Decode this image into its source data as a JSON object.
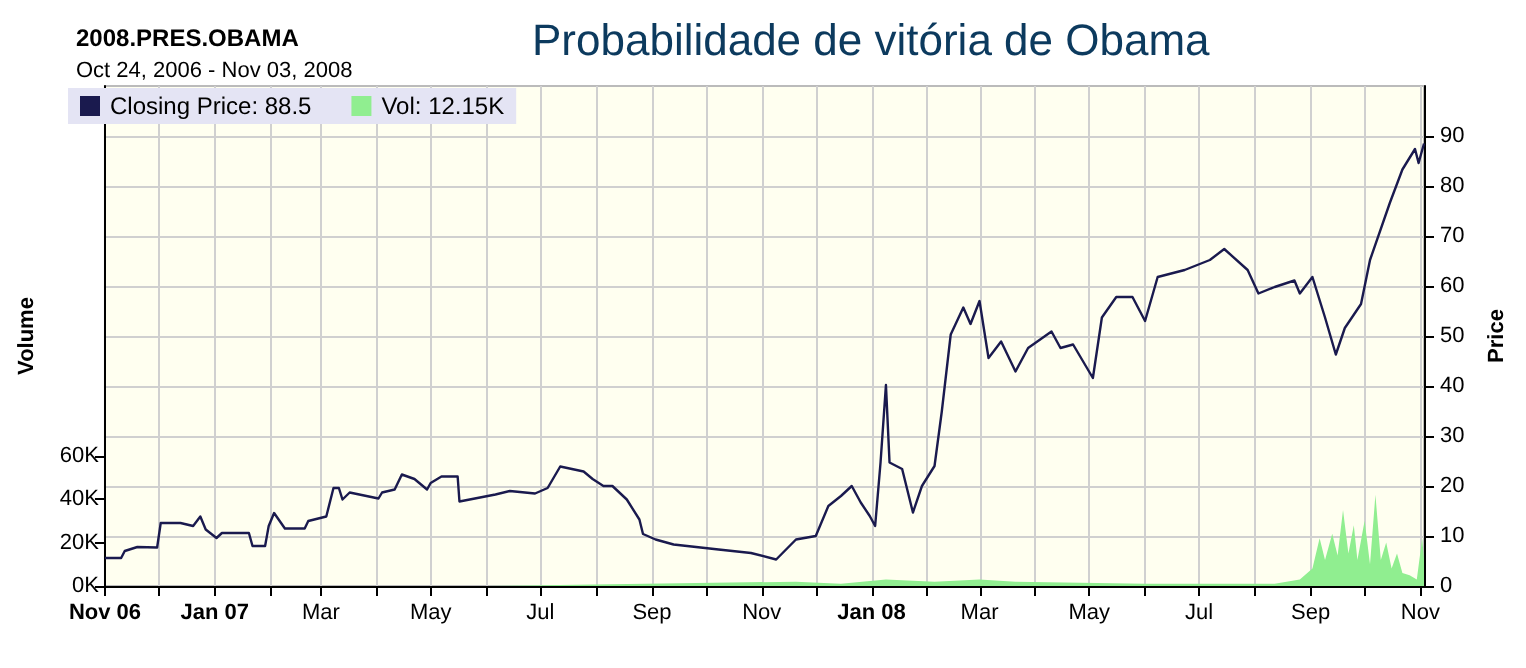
{
  "chart_data": {
    "type": "line",
    "title": "Probabilidade de vitória de Obama",
    "subtitle": "2008.PRES.OBAMA",
    "annotations": [
      "Oct 24, 2006 - Nov 03, 2008"
    ],
    "ylabel": "Volume",
    "y2label": "Price",
    "xlim": [
      "2006-11-01",
      "2008-11-03"
    ],
    "xticks": [
      {
        "value": "2006-11-01",
        "label": "Nov 06"
      },
      {
        "value": "2006-12-01",
        "label": null
      },
      {
        "value": "2007-01-01",
        "label": "Jan 07"
      },
      {
        "value": "2007-02-01",
        "label": null
      },
      {
        "value": "2007-03-01",
        "label": "Mar"
      },
      {
        "value": "2007-04-01",
        "label": null
      },
      {
        "value": "2007-05-01",
        "label": "May"
      },
      {
        "value": "2007-06-01",
        "label": null
      },
      {
        "value": "2007-07-01",
        "label": "Jul"
      },
      {
        "value": "2007-08-01",
        "label": null
      },
      {
        "value": "2007-09-01",
        "label": "Sep"
      },
      {
        "value": "2007-10-01",
        "label": null
      },
      {
        "value": "2007-11-01",
        "label": "Nov"
      },
      {
        "value": "2007-12-01",
        "label": null
      },
      {
        "value": "2008-01-01",
        "label": "Jan 08"
      },
      {
        "value": "2008-02-01",
        "label": null
      },
      {
        "value": "2008-03-01",
        "label": "Mar"
      },
      {
        "value": "2008-04-01",
        "label": null
      },
      {
        "value": "2008-05-01",
        "label": "May"
      },
      {
        "value": "2008-06-01",
        "label": null
      },
      {
        "value": "2008-07-01",
        "label": "Jul"
      },
      {
        "value": "2008-08-01",
        "label": null
      },
      {
        "value": "2008-09-01",
        "label": "Sep"
      },
      {
        "value": "2008-10-01",
        "label": null
      },
      {
        "value": "2008-11-01",
        "label": "Nov"
      }
    ],
    "ylim": [
      0,
      230
    ],
    "yticks": [
      {
        "value": 0,
        "label": "0K"
      },
      {
        "value": 20,
        "label": "20K"
      },
      {
        "value": 40,
        "label": "40K"
      },
      {
        "value": 60,
        "label": "60K"
      }
    ],
    "y2lim": [
      0,
      100
    ],
    "y2ticks": [
      0,
      10,
      20,
      30,
      40,
      50,
      60,
      70,
      80,
      90
    ],
    "grid": true,
    "legend": "top left",
    "series": [
      {
        "name": "Vol: 12.15K",
        "type": "area",
        "color": "#90ee90",
        "x": [
          "2006-11-01",
          "2007-06-01",
          "2007-11-20",
          "2007-12-15",
          "2008-01-09",
          "2008-02-05",
          "2008-03-01",
          "2008-03-21",
          "2008-06-01",
          "2008-08-12",
          "2008-08-26",
          "2008-09-02",
          "2008-09-06",
          "2008-09-09",
          "2008-09-13",
          "2008-09-16",
          "2008-09-19",
          "2008-09-22",
          "2008-09-25",
          "2008-09-27",
          "2008-10-01",
          "2008-10-04",
          "2008-10-07",
          "2008-10-10",
          "2008-10-13",
          "2008-10-16",
          "2008-10-19",
          "2008-10-22",
          "2008-10-26",
          "2008-10-30",
          "2008-11-02",
          "2008-11-03"
        ],
        "values": [
          0,
          0,
          2,
          1,
          3,
          2,
          3,
          2,
          1,
          1,
          3,
          8,
          22,
          12,
          24,
          14,
          35,
          15,
          28,
          12,
          30,
          10,
          42,
          12,
          20,
          8,
          15,
          6,
          5,
          3,
          22,
          12.15
        ]
      },
      {
        "name": "Closing Price: 88.5",
        "axis": "y2",
        "color": "#1a1a4e",
        "x": [
          "2006-11-01",
          "2006-11-10",
          "2006-11-12",
          "2006-11-19",
          "2006-11-30",
          "2006-12-02",
          "2006-12-13",
          "2006-12-20",
          "2006-12-24",
          "2006-12-27",
          "2007-01-02",
          "2007-01-05",
          "2007-01-20",
          "2007-01-22",
          "2007-01-29",
          "2007-01-31",
          "2007-02-03",
          "2007-02-09",
          "2007-02-20",
          "2007-02-22",
          "2007-03-04",
          "2007-03-08",
          "2007-03-11",
          "2007-03-13",
          "2007-03-17",
          "2007-04-02",
          "2007-04-04",
          "2007-04-11",
          "2007-04-15",
          "2007-04-22",
          "2007-04-29",
          "2007-05-01",
          "2007-05-07",
          "2007-05-16",
          "2007-05-17",
          "2007-06-06",
          "2007-06-14",
          "2007-06-28",
          "2007-07-05",
          "2007-07-12",
          "2007-07-25",
          "2007-07-30",
          "2007-08-05",
          "2007-08-10",
          "2007-08-18",
          "2007-08-25",
          "2007-08-27",
          "2007-09-03",
          "2007-09-13",
          "2007-10-08",
          "2007-10-26",
          "2007-11-09",
          "2007-11-20",
          "2007-12-01",
          "2007-12-08",
          "2007-12-15",
          "2007-12-21",
          "2007-12-26",
          "2007-12-31",
          "2008-01-03",
          "2008-01-06",
          "2008-01-09",
          "2008-01-11",
          "2008-01-18",
          "2008-01-24",
          "2008-01-29",
          "2008-02-05",
          "2008-02-09",
          "2008-02-14",
          "2008-02-21",
          "2008-02-25",
          "2008-03-01",
          "2008-03-06",
          "2008-03-13",
          "2008-03-21",
          "2008-03-28",
          "2008-04-10",
          "2008-04-15",
          "2008-04-22",
          "2008-05-03",
          "2008-05-08",
          "2008-05-16",
          "2008-05-25",
          "2008-06-01",
          "2008-06-08",
          "2008-06-23",
          "2008-07-07",
          "2008-07-15",
          "2008-07-28",
          "2008-08-03",
          "2008-08-12",
          "2008-08-23",
          "2008-08-26",
          "2008-09-02",
          "2008-09-09",
          "2008-09-15",
          "2008-09-20",
          "2008-09-29",
          "2008-10-04",
          "2008-10-15",
          "2008-10-22",
          "2008-10-29",
          "2008-10-31",
          "2008-11-03"
        ],
        "values": [
          5.6,
          5.6,
          7.0,
          7.8,
          7.7,
          12.6,
          12.6,
          12.0,
          13.9,
          11.3,
          9.6,
          10.6,
          10.6,
          8.0,
          8.0,
          12.0,
          14.6,
          11.5,
          11.5,
          13.0,
          13.9,
          19.6,
          19.6,
          17.3,
          18.7,
          17.5,
          18.7,
          19.3,
          22.3,
          21.4,
          19.3,
          20.6,
          21.9,
          21.9,
          16.9,
          18.3,
          19.0,
          18.5,
          19.6,
          23.9,
          22.9,
          21.4,
          20.0,
          20.0,
          17.3,
          13.3,
          10.4,
          9.3,
          8.3,
          7.3,
          6.6,
          5.3,
          9.3,
          10.0,
          16.0,
          18.0,
          20.0,
          16.7,
          14.0,
          12.0,
          24.7,
          40.2,
          24.7,
          23.4,
          14.7,
          20.0,
          24.0,
          34.8,
          50.3,
          55.7,
          52.4,
          57.0,
          45.6,
          48.9,
          42.9,
          47.6,
          50.9,
          47.6,
          48.3,
          41.6,
          53.7,
          57.8,
          57.8,
          53.0,
          61.8,
          63.2,
          65.2,
          67.4,
          63.2,
          58.5,
          59.8,
          61.1,
          58.5,
          61.8,
          53.7,
          46.3,
          51.6,
          56.4,
          65.2,
          76.6,
          83.3,
          87.4,
          84.6,
          88.5
        ]
      }
    ]
  }
}
